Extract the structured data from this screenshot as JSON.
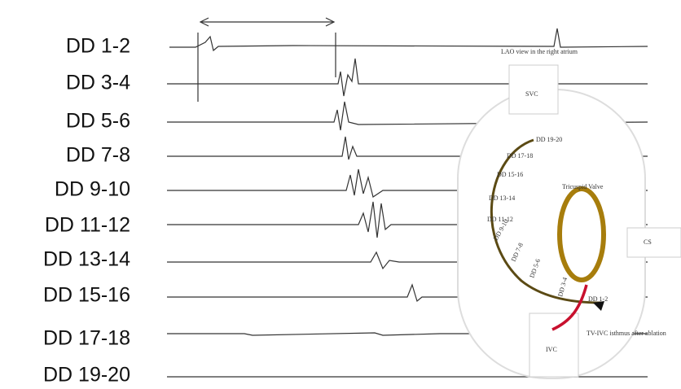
{
  "channels": [
    "DD 1-2",
    "DD 3-4",
    "DD 5-6",
    "DD 7-8",
    "DD 9-10",
    "DD 11-12",
    "DD 13-14",
    "DD 15-16",
    "DD 17-18",
    "DD 19-20"
  ],
  "diagram": {
    "view_label": "LAO view in the right atrium",
    "svc": "SVC",
    "ivc": "IVC",
    "cs": "CS",
    "valve": "Tricuspid Valve",
    "isthmus": "TV-IVC isthmus after ablation",
    "electrodes": [
      "DD 19-20",
      "DD 17-18",
      "DD 15-16",
      "DD 13-14",
      "DD 11-12",
      "DD 9-10",
      "DD 7-8",
      "DD 5-6",
      "DD 3-4",
      "DD 1-2"
    ]
  }
}
